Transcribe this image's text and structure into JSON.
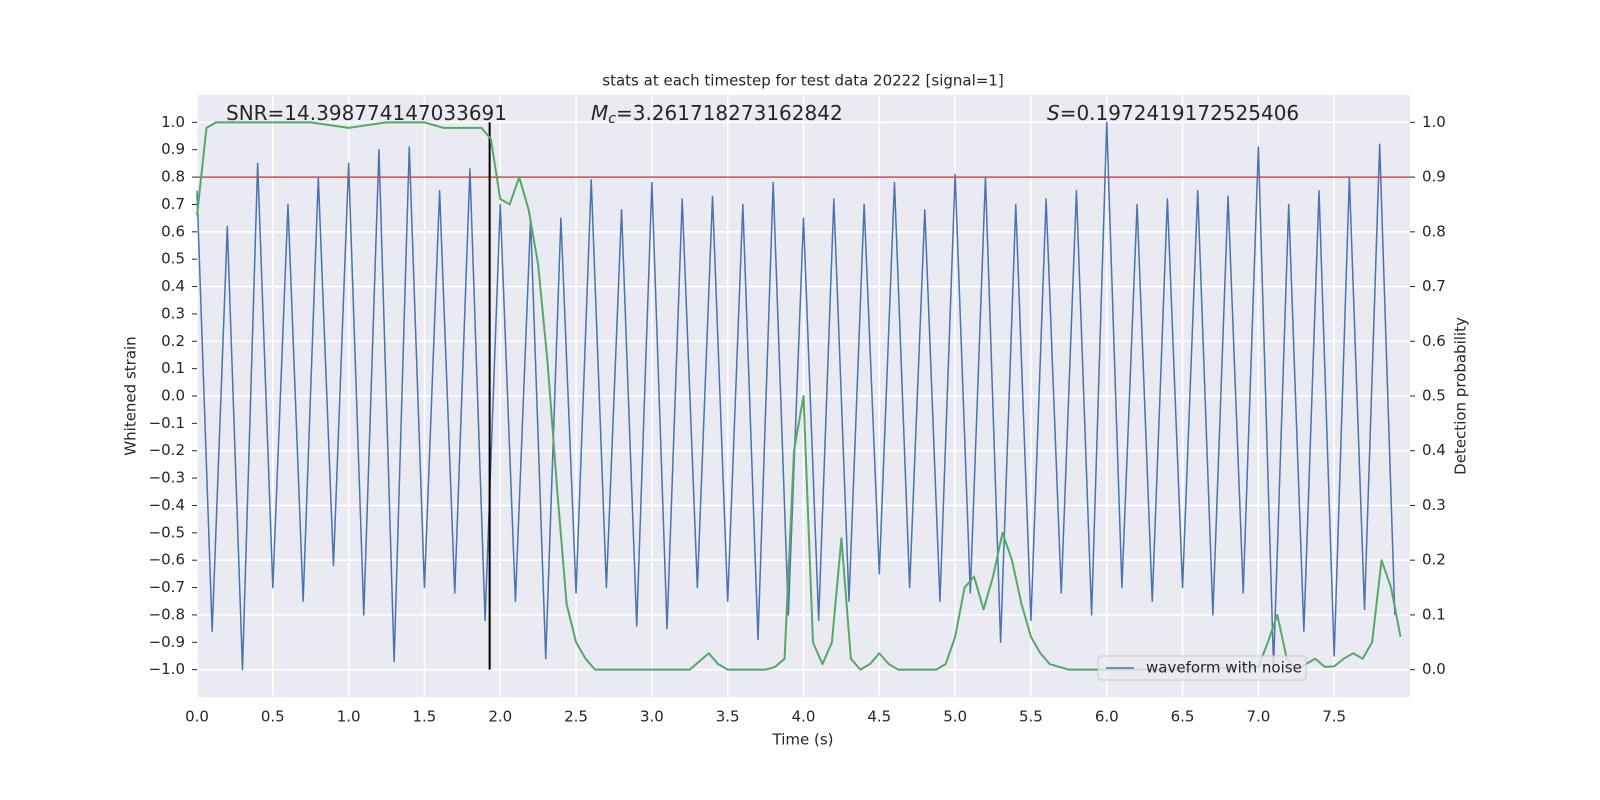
{
  "chart_data": {
    "type": "line",
    "title": "stats at each timestep for test data 20222 [signal=1]",
    "xlabel": "Time (s)",
    "ylabel": "Whitened strain",
    "y2label": "Detection probability",
    "annotations": [
      {
        "text": "SNR=14.398774147033691"
      },
      {
        "symbol": "M",
        "subscript": "c",
        "text": "=3.261718273162842"
      },
      {
        "symbol": "S",
        "text": "=0.1972419172525406"
      }
    ],
    "xlim": [
      0,
      8.0
    ],
    "ylim": [
      -1.1,
      1.1
    ],
    "y2lim": [
      -0.05,
      1.05
    ],
    "xticks": [
      {
        "value": 0,
        "label": "0.0"
      },
      0.5,
      {
        "value": 1,
        "label": "1.0"
      },
      1.5,
      {
        "value": 2,
        "label": "2.0"
      },
      2.5,
      {
        "value": 3,
        "label": "3.0"
      },
      3.5,
      {
        "value": 4,
        "label": "4.0"
      },
      4.5,
      {
        "value": 5,
        "label": "5.0"
      },
      5.5,
      {
        "value": 6,
        "label": "6.0"
      },
      6.5,
      {
        "value": 7,
        "label": "7.0"
      },
      7.5
    ],
    "yticks": [
      {
        "value": -1,
        "label": "−1.0"
      },
      {
        "value": -0.9,
        "label": "−0.9"
      },
      {
        "value": -0.8,
        "label": "−0.8"
      },
      {
        "value": -0.7,
        "label": "−0.7"
      },
      {
        "value": -0.6,
        "label": "−0.6"
      },
      {
        "value": -0.5,
        "label": "−0.5"
      },
      {
        "value": -0.4,
        "label": "−0.4"
      },
      {
        "value": -0.3,
        "label": "−0.3"
      },
      {
        "value": -0.2,
        "label": "−0.2"
      },
      {
        "value": -0.1,
        "label": "−0.1"
      },
      {
        "value": 0,
        "label": "0.0"
      },
      0.1,
      0.2,
      0.3,
      0.4,
      0.5,
      0.6,
      0.7,
      0.8,
      0.9,
      {
        "value": 1,
        "label": "1.0"
      }
    ],
    "y2ticks": [
      {
        "value": 0,
        "label": "0.0"
      },
      0.1,
      0.2,
      0.3,
      0.4,
      0.5,
      0.6,
      0.7,
      0.8,
      0.9,
      {
        "value": 1,
        "label": "1.0"
      }
    ],
    "grid": true,
    "legend": "lower right",
    "series": [
      {
        "name": "waveform with noise",
        "color": "#4c72b0",
        "x": [
          0.0,
          0.1,
          0.2,
          0.3,
          0.4,
          0.5,
          0.6,
          0.7,
          0.8,
          0.9,
          1.0,
          1.1,
          1.2,
          1.3,
          1.4,
          1.5,
          1.6,
          1.7,
          1.8,
          1.9,
          2.0,
          2.1,
          2.2,
          2.3,
          2.4,
          2.5,
          2.6,
          2.7,
          2.8,
          2.9,
          3.0,
          3.1,
          3.2,
          3.3,
          3.4,
          3.5,
          3.6,
          3.7,
          3.8,
          3.9,
          4.0,
          4.1,
          4.2,
          4.3,
          4.4,
          4.5,
          4.6,
          4.7,
          4.8,
          4.9,
          5.0,
          5.1,
          5.2,
          5.3,
          5.4,
          5.5,
          5.6,
          5.7,
          5.8,
          5.9,
          6.0,
          6.1,
          6.2,
          6.3,
          6.4,
          6.5,
          6.6,
          6.7,
          6.8,
          6.9,
          7.0,
          7.1,
          7.2,
          7.3,
          7.4,
          7.5,
          7.6,
          7.7,
          7.8,
          7.9
        ],
        "values": [
          0.75,
          -0.86,
          0.62,
          -1.0,
          0.85,
          -0.7,
          0.7,
          -0.75,
          0.8,
          -0.62,
          0.85,
          -0.8,
          0.9,
          -0.97,
          0.91,
          -0.7,
          0.75,
          -0.72,
          0.83,
          -0.82,
          0.7,
          -0.75,
          0.65,
          -0.96,
          0.65,
          -0.72,
          0.79,
          -0.7,
          0.68,
          -0.84,
          0.78,
          -0.85,
          0.72,
          -0.7,
          0.73,
          -0.75,
          0.7,
          -0.89,
          0.78,
          -0.8,
          0.65,
          -0.82,
          0.72,
          -0.75,
          0.7,
          -0.65,
          0.78,
          -0.7,
          0.68,
          -0.75,
          0.81,
          -0.72,
          0.8,
          -0.9,
          0.7,
          -0.82,
          0.72,
          -0.72,
          0.75,
          -0.8,
          1.0,
          -0.7,
          0.7,
          -0.75,
          0.72,
          -0.7,
          0.75,
          -0.8,
          0.73,
          -0.72,
          0.91,
          -0.99,
          0.7,
          -0.86,
          0.75,
          -0.95,
          0.8,
          -0.78,
          0.92,
          -0.8
        ]
      },
      {
        "color": "#55a868",
        "axis": "y2",
        "x": [
          0,
          0.0625,
          0.125,
          0.25,
          0.5,
          0.75,
          1.0,
          1.25,
          1.5,
          1.625,
          1.75,
          1.875,
          1.9375,
          2.0,
          2.0625,
          2.125,
          2.1875,
          2.25,
          2.3125,
          2.375,
          2.4375,
          2.5,
          2.5625,
          2.625,
          2.75,
          3.0,
          3.25,
          3.375,
          3.4375,
          3.5,
          3.75,
          3.8125,
          3.875,
          3.9375,
          4.0,
          4.0625,
          4.125,
          4.1875,
          4.25,
          4.3125,
          4.375,
          4.4375,
          4.5,
          4.5625,
          4.625,
          4.875,
          4.9375,
          5.0,
          5.0625,
          5.125,
          5.1875,
          5.25,
          5.3125,
          5.375,
          5.4375,
          5.5,
          5.5625,
          5.625,
          5.75,
          6.0,
          6.5,
          7.0,
          7.0625,
          7.125,
          7.1875,
          7.25,
          7.3125,
          7.375,
          7.4375,
          7.5,
          7.5625,
          7.625,
          7.6875,
          7.75,
          7.8125,
          7.875,
          7.9375
        ],
        "values": [
          0.83,
          0.99,
          1.0,
          1.0,
          1.0,
          1.0,
          0.99,
          1.0,
          1.0,
          0.99,
          0.99,
          0.99,
          0.97,
          0.86,
          0.85,
          0.9,
          0.84,
          0.74,
          0.56,
          0.33,
          0.12,
          0.05,
          0.02,
          0.0,
          0.0,
          0.0,
          0.0,
          0.03,
          0.01,
          0.0,
          0.0,
          0.005,
          0.02,
          0.4,
          0.5,
          0.05,
          0.01,
          0.05,
          0.24,
          0.02,
          0.0,
          0.01,
          0.03,
          0.01,
          0.0,
          0.0,
          0.01,
          0.06,
          0.15,
          0.17,
          0.11,
          0.17,
          0.25,
          0.2,
          0.12,
          0.06,
          0.03,
          0.01,
          0.0,
          0.0,
          0.0,
          0.005,
          0.05,
          0.1,
          0.02,
          0.0,
          0.01,
          0.02,
          0.005,
          0.006,
          0.02,
          0.03,
          0.02,
          0.05,
          0.2,
          0.15,
          0.06
        ]
      }
    ],
    "threshold": {
      "value": 0.9,
      "axis": "y2",
      "color": "#c44e52"
    },
    "marker_line": {
      "x": 1.93,
      "y": [
        -1.0,
        1.0
      ],
      "color": "#000000"
    }
  }
}
